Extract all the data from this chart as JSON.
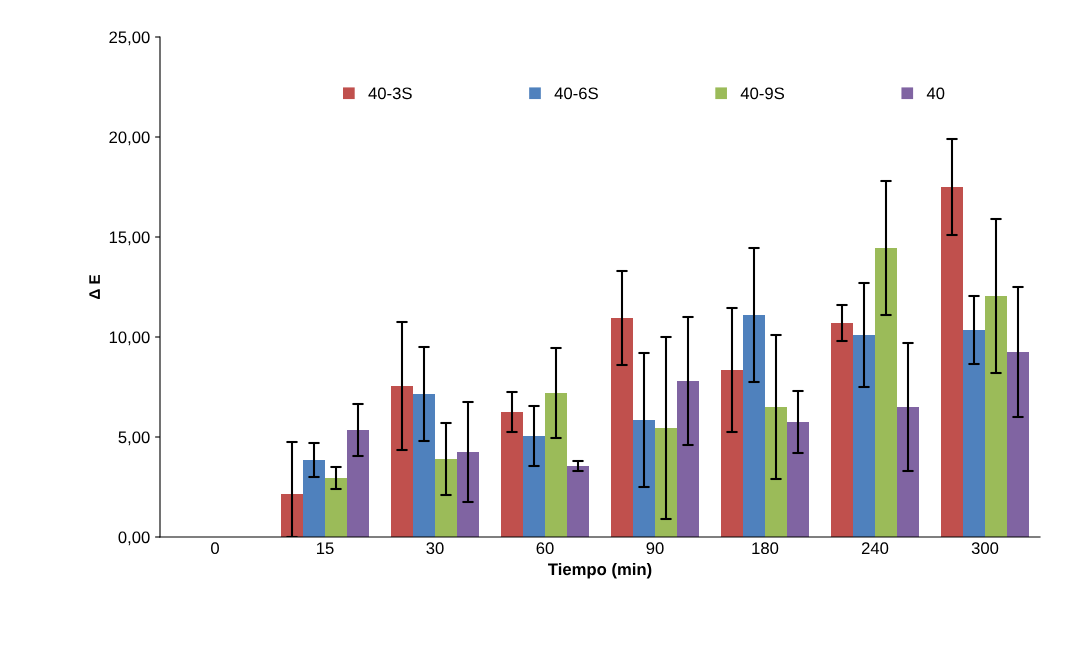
{
  "chart_data": {
    "type": "bar",
    "xlabel": "Tiempo (min)",
    "ylabel": "Δ E",
    "categories": [
      "0",
      "15",
      "30",
      "60",
      "90",
      "180",
      "240",
      "300"
    ],
    "ylim": [
      0,
      25
    ],
    "yticks": [
      {
        "value": 0,
        "label": "0,00"
      },
      {
        "value": 5,
        "label": "5,00"
      },
      {
        "value": 10,
        "label": "10,00"
      },
      {
        "value": 15,
        "label": "15,00"
      },
      {
        "value": 20,
        "label": "20,00"
      },
      {
        "value": 25,
        "label": "25,00"
      }
    ],
    "legend": "top",
    "grid": false,
    "series": [
      {
        "name": "40-3S",
        "color": "#c0504d",
        "values": [
          0,
          2.15,
          7.55,
          6.25,
          10.95,
          8.35,
          10.7,
          17.5
        ],
        "errors": [
          null,
          [
            0,
            4.75
          ],
          3.2,
          1.0,
          2.35,
          3.1,
          0.9,
          2.4
        ]
      },
      {
        "name": "40-6S",
        "color": "#4f81bd",
        "values": [
          0,
          3.85,
          7.15,
          5.05,
          5.85,
          11.1,
          10.1,
          10.35
        ],
        "errors": [
          null,
          0.85,
          2.35,
          1.5,
          3.35,
          3.35,
          2.6,
          1.7
        ]
      },
      {
        "name": "40-9S",
        "color": "#9bbb59",
        "values": [
          0,
          2.95,
          3.9,
          7.2,
          5.45,
          6.5,
          14.45,
          12.05
        ],
        "errors": [
          null,
          0.55,
          1.8,
          2.25,
          4.55,
          3.6,
          3.35,
          3.85
        ]
      },
      {
        "name": "40",
        "color": "#8064a2",
        "values": [
          0,
          5.35,
          4.25,
          3.55,
          7.8,
          5.75,
          6.5,
          9.25
        ],
        "errors": [
          null,
          1.3,
          2.5,
          0.25,
          3.2,
          1.55,
          3.2,
          3.25
        ]
      }
    ]
  }
}
